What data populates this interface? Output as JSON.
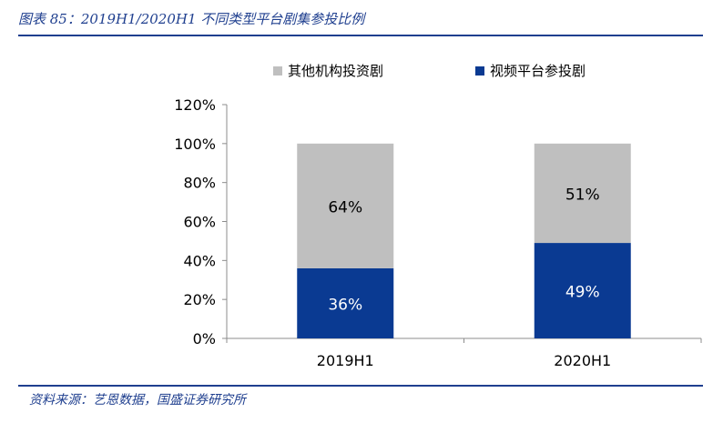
{
  "header": {
    "title": "图表 85：2019H1/2020H1 不同类型平台剧集参投比例"
  },
  "footer": {
    "source": "资料来源：艺恩数据，国盛证券研究所"
  },
  "colors": {
    "accent": "#1f3f8f",
    "other_platform": "#bfbfbf",
    "video_platform": "#0a3a92"
  },
  "chart_data": {
    "type": "bar",
    "stacked": true,
    "categories": [
      "2019H1",
      "2020H1"
    ],
    "series": [
      {
        "name": "视频平台参投剧",
        "values": [
          36,
          49
        ],
        "labels": [
          "36%",
          "49%"
        ],
        "color": "#0a3a92"
      },
      {
        "name": "其他机构投资剧",
        "values": [
          64,
          51
        ],
        "labels": [
          "64%",
          "51%"
        ],
        "color": "#bfbfbf"
      }
    ],
    "legend": [
      "其他机构投资剧",
      "视频平台参投剧"
    ],
    "legend_position": "top",
    "ylim": [
      0,
      120
    ],
    "yticks": [
      0,
      20,
      40,
      60,
      80,
      100,
      120
    ],
    "ytick_labels": [
      "0%",
      "20%",
      "40%",
      "60%",
      "80%",
      "100%",
      "120%"
    ],
    "grid": false
  }
}
